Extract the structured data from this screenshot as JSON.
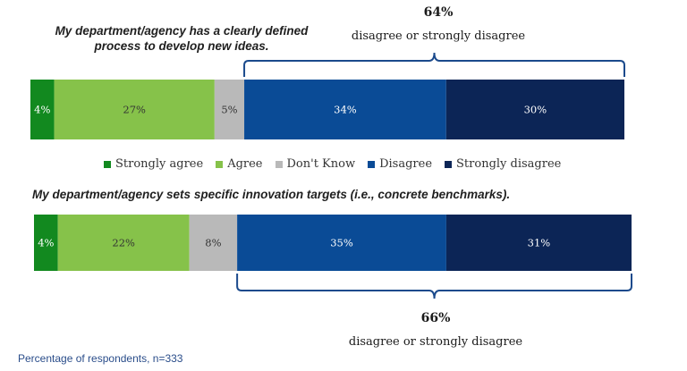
{
  "colors": {
    "strongly_agree": "#12891f",
    "agree": "#86c24a",
    "dont_know": "#b9b9b9",
    "disagree": "#0a4b96",
    "strongly_disagree": "#0c2556",
    "brace": "#1b4a8c"
  },
  "legend": [
    "Strongly agree",
    "Agree",
    "Don't Know",
    "Disagree",
    "Strongly disagree"
  ],
  "note": "Percentage of respondents, n=333",
  "chart_data": {
    "type": "bar",
    "orientation": "horizontal",
    "stacked": true,
    "categories": [
      "My department/agency has a clearly defined process to develop new ideas.",
      "My department/agency sets specific innovation targets (i.e., concrete benchmarks)."
    ],
    "series": [
      {
        "name": "Strongly agree",
        "values": [
          4,
          4
        ],
        "labels": [
          "4%",
          "4%"
        ]
      },
      {
        "name": "Agree",
        "values": [
          27,
          22
        ],
        "labels": [
          "27%",
          "22%"
        ]
      },
      {
        "name": "Don't Know",
        "values": [
          5,
          8
        ],
        "labels": [
          "5%",
          "8%"
        ]
      },
      {
        "name": "Disagree",
        "values": [
          34,
          35
        ],
        "labels": [
          "34%",
          "35%"
        ]
      },
      {
        "name": "Strongly disagree",
        "values": [
          30,
          31
        ],
        "labels": [
          "30%",
          "31%"
        ]
      }
    ],
    "annotations": [
      {
        "bar": 0,
        "percent": "64%",
        "text": "disagree or strongly disagree",
        "position": "above"
      },
      {
        "bar": 1,
        "percent": "66%",
        "text": "disagree or strongly disagree",
        "position": "below"
      }
    ],
    "unit": "%"
  }
}
